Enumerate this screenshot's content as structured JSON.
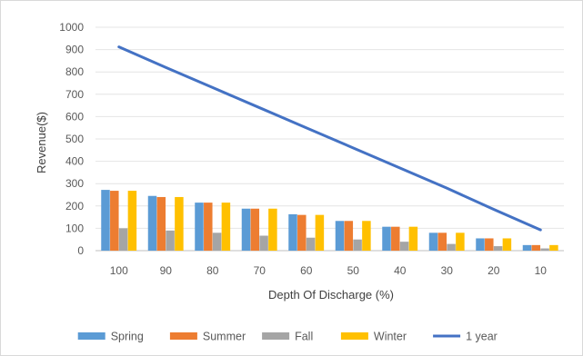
{
  "chart_data": {
    "type": "bar",
    "xlabel": "Depth Of Discharge (%)",
    "ylabel": "Revenue($)",
    "ylim": [
      0,
      1000
    ],
    "yticks": [
      0,
      100,
      200,
      300,
      400,
      500,
      600,
      700,
      800,
      900,
      1000
    ],
    "grid": true,
    "legend_position": "bottom",
    "categories": [
      "100",
      "90",
      "80",
      "70",
      "60",
      "50",
      "40",
      "30",
      "20",
      "10"
    ],
    "series": [
      {
        "name": "Spring",
        "kind": "bar",
        "color": "#5b9bd5",
        "values": [
          272,
          245,
          215,
          188,
          163,
          133,
          107,
          80,
          55,
          25
        ]
      },
      {
        "name": "Summer",
        "kind": "bar",
        "color": "#ed7d31",
        "values": [
          268,
          240,
          215,
          188,
          160,
          133,
          107,
          80,
          55,
          25
        ]
      },
      {
        "name": "Fall",
        "kind": "bar",
        "color": "#a5a5a5",
        "values": [
          100,
          90,
          80,
          67,
          58,
          50,
          40,
          30,
          20,
          10
        ]
      },
      {
        "name": "Winter",
        "kind": "bar",
        "color": "#ffc000",
        "values": [
          268,
          240,
          215,
          188,
          160,
          133,
          107,
          80,
          55,
          25
        ]
      },
      {
        "name": "1 year",
        "kind": "line",
        "color": "#4472c4",
        "values": [
          912,
          820,
          730,
          640,
          550,
          460,
          370,
          280,
          185,
          93
        ]
      }
    ]
  }
}
